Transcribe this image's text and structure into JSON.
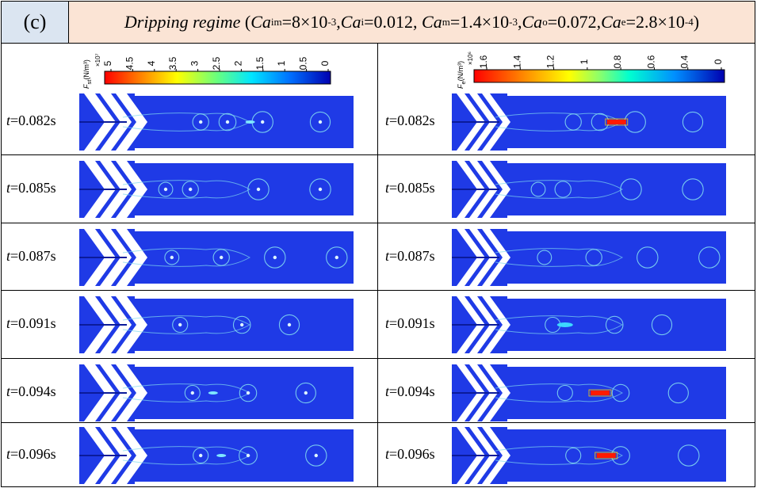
{
  "header": {
    "panel_label": "(c)",
    "title_prefix": "Dripping regime",
    "ca_sym": "Ca",
    "sub_im": "im",
    "val_im_base": "=8×10",
    "val_im_exp": "-3",
    "sep": ",",
    "sub_i": "i",
    "val_i": "=0.012",
    "sub_m": "m",
    "val_m_base": "=1.4×10",
    "val_m_exp": "-3",
    "sub_o": "o",
    "val_o": "=0.072",
    "sub_e": "e",
    "val_e_base": "=2.8×10",
    "val_e_exp": "-4",
    "open_paren": "(",
    "close_paren": ")"
  },
  "left_colorbar": {
    "symbol": "F",
    "subscript": "st",
    "unit": "(N/m³)",
    "exponent": "×10⁷",
    "ticks": [
      "5",
      "4.5",
      "4",
      "3.5",
      "3",
      "2.5",
      "2",
      "1.5",
      "1",
      "0.5",
      "0"
    ]
  },
  "right_colorbar": {
    "symbol": "F",
    "subscript": "e",
    "unit": "(N/m³)",
    "exponent": "×10⁶",
    "ticks": [
      "1.6",
      "1.4",
      "1.2",
      "1",
      "0.8",
      "0.6",
      "0.4",
      "0"
    ]
  },
  "time_var": "t",
  "rows": [
    {
      "time": "=0.082s"
    },
    {
      "time": "=0.085s"
    },
    {
      "time": "=0.087s"
    },
    {
      "time": "=0.091s"
    },
    {
      "time": "=0.094s"
    },
    {
      "time": "=0.096s"
    }
  ],
  "colors": {
    "header_label_bg": "#dbe5f1",
    "header_title_bg": "#fbe4d5",
    "field_blue": "#1f3ae6",
    "interface_cyan": "#7fd8f0",
    "hot_red": "#ff1a00"
  }
}
